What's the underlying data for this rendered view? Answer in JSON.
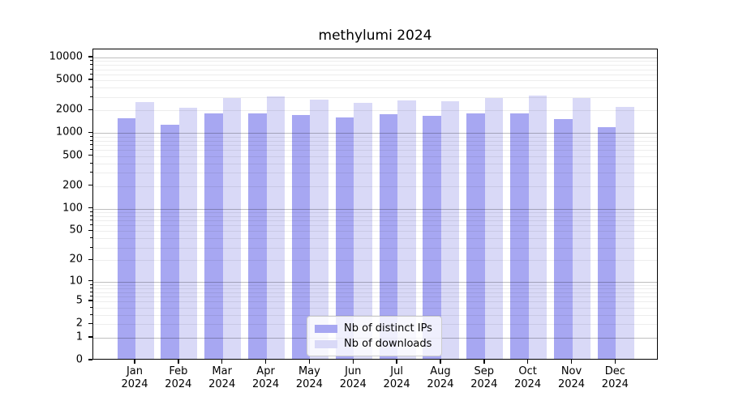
{
  "chart": {
    "title": "methylumi 2024"
  },
  "chart_data": {
    "type": "bar",
    "title": "methylumi 2024",
    "categories": [
      "Jan",
      "Feb",
      "Mar",
      "Apr",
      "May",
      "Jun",
      "Jul",
      "Aug",
      "Sep",
      "Oct",
      "Nov",
      "Dec"
    ],
    "year_label": "2024",
    "series": [
      {
        "name": "Nb of distinct IPs",
        "color": "#a7a7f2",
        "values": [
          1490,
          1220,
          1730,
          1750,
          1640,
          1530,
          1700,
          1630,
          1730,
          1750,
          1480,
          1150
        ]
      },
      {
        "name": "Nb of downloads",
        "color": "#d9d9f7",
        "values": [
          2480,
          2080,
          2800,
          2950,
          2660,
          2420,
          2600,
          2540,
          2770,
          2970,
          2800,
          2120
        ]
      }
    ],
    "xlabel": "",
    "ylabel": "",
    "yscale": "log10(1+y)",
    "ylim": [
      0,
      12800
    ],
    "yticks": [
      0,
      1,
      2,
      5,
      10,
      20,
      50,
      100,
      200,
      500,
      1000,
      2000,
      5000,
      10000
    ],
    "grid": "on",
    "legend_position": "lower center"
  }
}
